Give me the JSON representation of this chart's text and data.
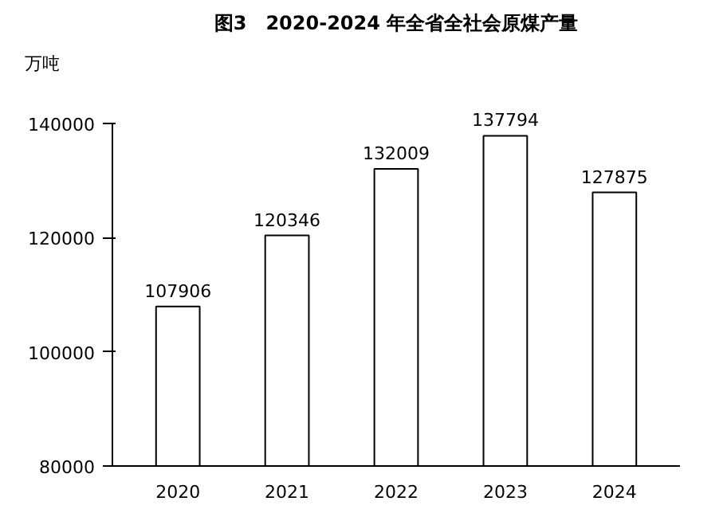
{
  "chart_data": {
    "type": "bar",
    "title": "图3　2020-2024 年全省全社会原煤产量",
    "ylabel": "万吨",
    "categories": [
      "2020",
      "2021",
      "2022",
      "2023",
      "2024"
    ],
    "values": [
      107906,
      120346,
      132009,
      137794,
      127875
    ],
    "color": "#ffffff",
    "ylim": [
      80000,
      140000
    ],
    "yticks": [
      80000,
      100000,
      120000,
      140000
    ],
    "grid": false,
    "data_labels": true
  }
}
